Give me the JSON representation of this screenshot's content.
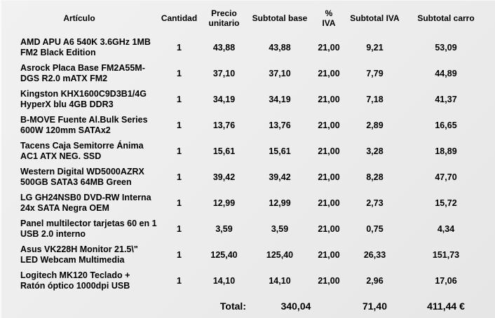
{
  "colors": {
    "background": "#ededed",
    "text": "#000000"
  },
  "table": {
    "header": {
      "articulo": "Artículo",
      "cantidad": "Cantidad",
      "precio_unitario": "Precio unitario",
      "subtotal_base": "Subtotal base",
      "pct_iva": "% IVA",
      "subtotal_iva": "Subtotal IVA",
      "subtotal_carro": "Subtotal carro"
    },
    "rows": [
      {
        "articulo": "AMD APU A6 540K 3.6GHz 1MB FM2 Black Edition",
        "cantidad": "1",
        "precio_unitario": "43,88",
        "subtotal_base": "43,88",
        "pct_iva": "21,00",
        "subtotal_iva": "9,21",
        "subtotal_carro": "53,09"
      },
      {
        "articulo": "Asrock Placa Base FM2A55M-DGS R2.0 mATX FM2",
        "cantidad": "1",
        "precio_unitario": "37,10",
        "subtotal_base": "37,10",
        "pct_iva": "21,00",
        "subtotal_iva": "7,79",
        "subtotal_carro": "44,89"
      },
      {
        "articulo": "Kingston KHX1600C9D3B1/4G HyperX blu 4GB DDR3",
        "cantidad": "1",
        "precio_unitario": "34,19",
        "subtotal_base": "34,19",
        "pct_iva": "21,00",
        "subtotal_iva": "7,18",
        "subtotal_carro": "41,37"
      },
      {
        "articulo": "B-MOVE Fuente Al.Bulk Series 600W 120mm SATAx2",
        "cantidad": "1",
        "precio_unitario": "13,76",
        "subtotal_base": "13,76",
        "pct_iva": "21,00",
        "subtotal_iva": "2,89",
        "subtotal_carro": "16,65"
      },
      {
        "articulo": "Tacens Caja Semitorre Ánima AC1 ATX NEG. SSD",
        "cantidad": "1",
        "precio_unitario": "15,61",
        "subtotal_base": "15,61",
        "pct_iva": "21,00",
        "subtotal_iva": "3,28",
        "subtotal_carro": "18,89"
      },
      {
        "articulo": "Western Digital WD5000AZRX 500GB SATA3 64MB Green",
        "cantidad": "1",
        "precio_unitario": "39,42",
        "subtotal_base": "39,42",
        "pct_iva": "21,00",
        "subtotal_iva": "8,28",
        "subtotal_carro": "47,70"
      },
      {
        "articulo": "LG GH24NSB0 DVD-RW Interna 24x SATA Negra OEM",
        "cantidad": "1",
        "precio_unitario": "12,99",
        "subtotal_base": "12,99",
        "pct_iva": "21,00",
        "subtotal_iva": "2,73",
        "subtotal_carro": "15,72"
      },
      {
        "articulo": "Panel multilector tarjetas 60 en 1 USB 2.0 interno",
        "cantidad": "1",
        "precio_unitario": "3,59",
        "subtotal_base": "3,59",
        "pct_iva": "21,00",
        "subtotal_iva": "0,75",
        "subtotal_carro": "4,34"
      },
      {
        "articulo": "Asus VK228H Monitor 21.5\\\" LED Webcam Multimedia",
        "cantidad": "1",
        "precio_unitario": "125,40",
        "subtotal_base": "125,40",
        "pct_iva": "21,00",
        "subtotal_iva": "26,33",
        "subtotal_carro": "151,73"
      },
      {
        "articulo": "Logitech MK120 Teclado + Ratón óptico 1000dpi USB",
        "cantidad": "1",
        "precio_unitario": "14,10",
        "subtotal_base": "14,10",
        "pct_iva": "21,00",
        "subtotal_iva": "2,96",
        "subtotal_carro": "17,06"
      }
    ],
    "totals": {
      "label": "Total:",
      "subtotal_base": "340,04",
      "subtotal_iva": "71,40",
      "subtotal_carro": "411,44 €"
    }
  }
}
